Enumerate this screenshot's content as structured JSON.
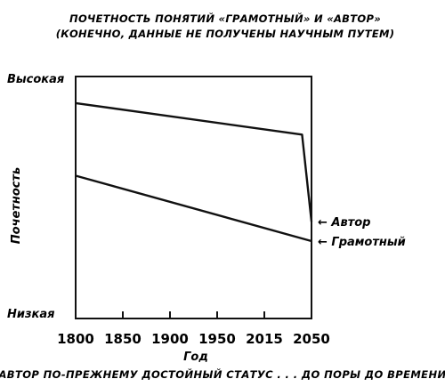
{
  "chart_data": {
    "type": "line",
    "title": "ПОЧЕТНОСТЬ ПОНЯТИЙ «ГРАМОТНЫЙ» И «АВТОР»",
    "subtitle": "(КОНЕЧНО, ДАННЫЕ НЕ ПОЛУЧЕНЫ НАУЧНЫМ ПУТЕМ)",
    "xlabel": "Год",
    "ylabel": "Почетность",
    "x_ticks": [
      "1800",
      "1850",
      "1900",
      "1950",
      "2015",
      "2050"
    ],
    "y_axis_labels": {
      "top": "Высокая",
      "bottom": "Низкая"
    },
    "xlim": [
      1800,
      2050
    ],
    "ylim": [
      0,
      100
    ],
    "grid": false,
    "legend": "right, inline labels with arrows",
    "series": [
      {
        "name": "Автор",
        "points": [
          [
            1800,
            89
          ],
          [
            2040,
            76
          ],
          [
            2050,
            40
          ]
        ]
      },
      {
        "name": "Грамотный",
        "points": [
          [
            1800,
            59
          ],
          [
            2050,
            32
          ]
        ]
      }
    ],
    "arrow_glyph": "←",
    "caption": "АВТОР ПО-ПРЕЖНЕМУ ДОСТОЙНЫЙ СТАТУС . . .  ДО ПОРЫ ДО ВРЕМЕНИ"
  }
}
